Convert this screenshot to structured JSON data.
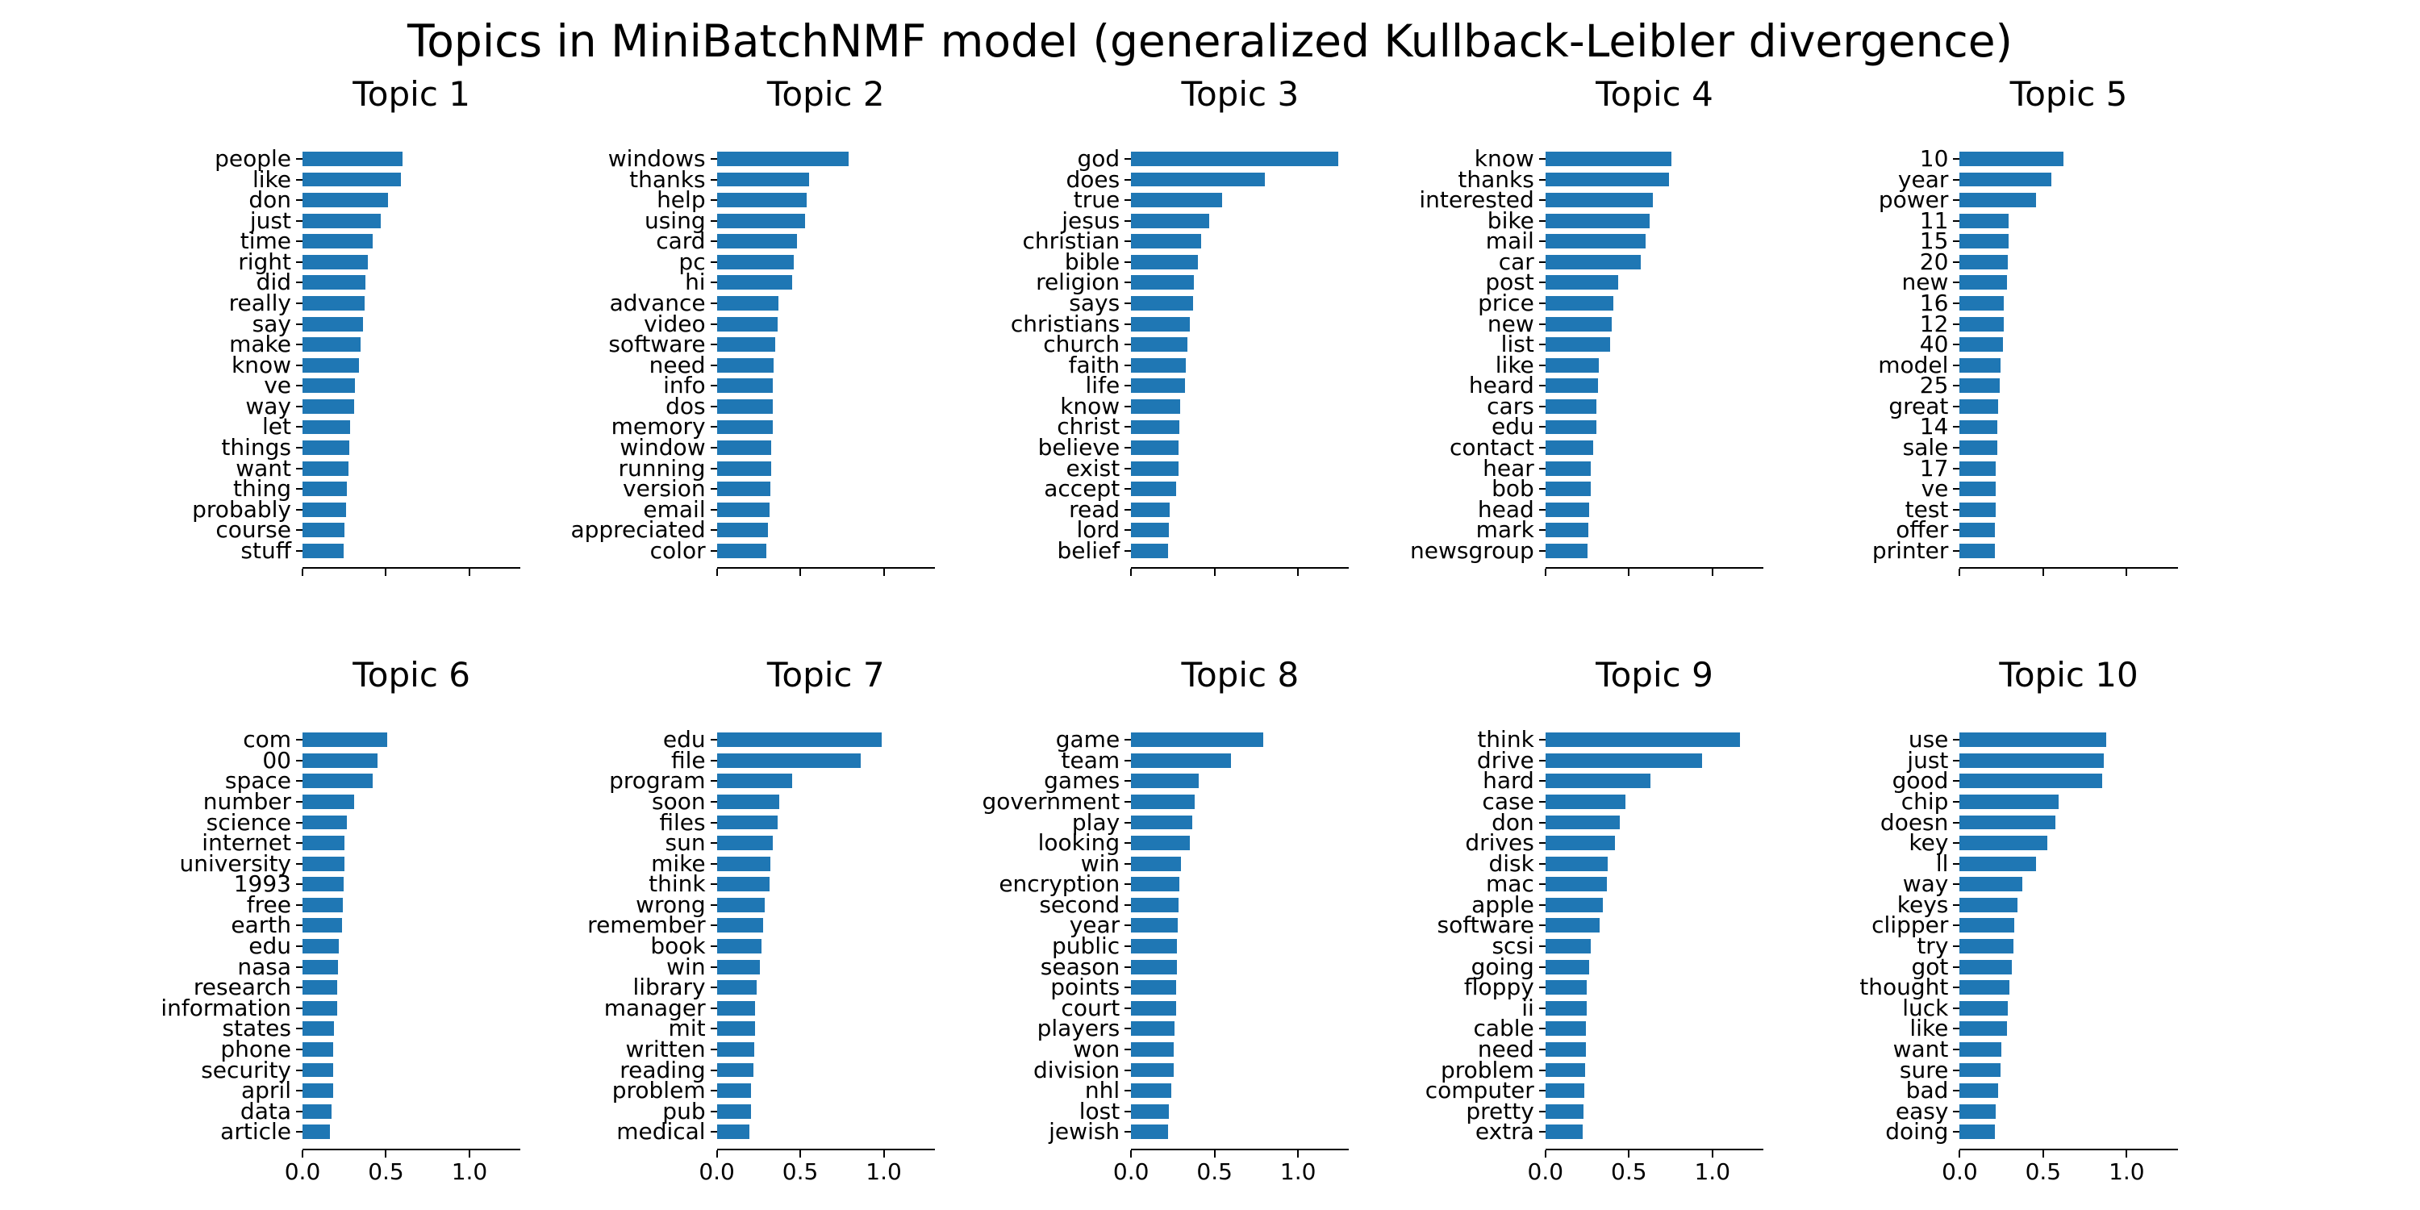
{
  "figure_title": "Topics in MiniBatchNMF model (generalized Kullback-Leibler divergence)",
  "chart_data": {
    "type": "bar",
    "orientation": "horizontal",
    "grid": false,
    "legend": "none",
    "bar_color": "#1f77b4",
    "xlim": [
      0,
      1.306
    ],
    "x_ticks": [
      0.0,
      0.5,
      1.0
    ],
    "x_tick_labels": [
      "0.0",
      "0.5",
      "1.0"
    ],
    "x_tick_labels_rows": [
      false,
      true
    ],
    "subplots": [
      {
        "title": "Topic 1",
        "words": [
          "people",
          "like",
          "don",
          "just",
          "time",
          "right",
          "did",
          "really",
          "say",
          "make",
          "know",
          "ve",
          "way",
          "let",
          "things",
          "want",
          "thing",
          "probably",
          "course",
          "stuff"
        ],
        "values": [
          0.6,
          0.59,
          0.51,
          0.47,
          0.42,
          0.39,
          0.375,
          0.37,
          0.36,
          0.35,
          0.34,
          0.315,
          0.31,
          0.285,
          0.28,
          0.275,
          0.265,
          0.26,
          0.252,
          0.246
        ]
      },
      {
        "title": "Topic 2",
        "words": [
          "windows",
          "thanks",
          "help",
          "using",
          "card",
          "pc",
          "hi",
          "advance",
          "video",
          "software",
          "need",
          "info",
          "dos",
          "memory",
          "window",
          "running",
          "version",
          "email",
          "appreciated",
          "color"
        ],
        "values": [
          0.79,
          0.555,
          0.54,
          0.53,
          0.48,
          0.462,
          0.45,
          0.37,
          0.365,
          0.35,
          0.34,
          0.337,
          0.335,
          0.335,
          0.326,
          0.324,
          0.32,
          0.314,
          0.308,
          0.295
        ]
      },
      {
        "title": "Topic 3",
        "words": [
          "god",
          "does",
          "true",
          "jesus",
          "christian",
          "bible",
          "religion",
          "says",
          "christians",
          "church",
          "faith",
          "life",
          "know",
          "christ",
          "believe",
          "exist",
          "accept",
          "read",
          "lord",
          "belief"
        ],
        "values": [
          1.24,
          0.8,
          0.545,
          0.468,
          0.42,
          0.402,
          0.376,
          0.372,
          0.352,
          0.335,
          0.328,
          0.325,
          0.295,
          0.29,
          0.284,
          0.282,
          0.268,
          0.23,
          0.226,
          0.221
        ]
      },
      {
        "title": "Topic 4",
        "words": [
          "know",
          "thanks",
          "interested",
          "bike",
          "mail",
          "car",
          "post",
          "price",
          "new",
          "list",
          "like",
          "heard",
          "cars",
          "edu",
          "contact",
          "hear",
          "bob",
          "head",
          "mark",
          "newsgroup"
        ],
        "values": [
          0.757,
          0.742,
          0.642,
          0.625,
          0.602,
          0.571,
          0.436,
          0.408,
          0.398,
          0.387,
          0.32,
          0.316,
          0.305,
          0.304,
          0.286,
          0.273,
          0.271,
          0.26,
          0.259,
          0.254
        ]
      },
      {
        "title": "Topic 5",
        "words": [
          "10",
          "year",
          "power",
          "11",
          "15",
          "20",
          "new",
          "16",
          "12",
          "40",
          "model",
          "25",
          "great",
          "14",
          "sale",
          "17",
          "ve",
          "test",
          "offer",
          "printer"
        ],
        "values": [
          0.623,
          0.55,
          0.455,
          0.292,
          0.291,
          0.288,
          0.284,
          0.266,
          0.264,
          0.26,
          0.245,
          0.24,
          0.231,
          0.227,
          0.226,
          0.217,
          0.216,
          0.215,
          0.211,
          0.211
        ]
      },
      {
        "title": "Topic 6",
        "words": [
          "com",
          "00",
          "space",
          "number",
          "science",
          "internet",
          "university",
          "1993",
          "free",
          "earth",
          "edu",
          "nasa",
          "research",
          "information",
          "states",
          "phone",
          "security",
          "april",
          "data",
          "article"
        ],
        "values": [
          0.506,
          0.448,
          0.421,
          0.309,
          0.267,
          0.253,
          0.249,
          0.248,
          0.241,
          0.235,
          0.218,
          0.213,
          0.207,
          0.206,
          0.189,
          0.184,
          0.184,
          0.183,
          0.174,
          0.166
        ]
      },
      {
        "title": "Topic 7",
        "words": [
          "edu",
          "file",
          "program",
          "soon",
          "files",
          "sun",
          "mike",
          "think",
          "wrong",
          "remember",
          "book",
          "win",
          "library",
          "manager",
          "mit",
          "written",
          "reading",
          "problem",
          "pub",
          "medical"
        ],
        "values": [
          0.988,
          0.862,
          0.449,
          0.375,
          0.362,
          0.337,
          0.322,
          0.317,
          0.285,
          0.276,
          0.269,
          0.256,
          0.237,
          0.231,
          0.23,
          0.224,
          0.217,
          0.206,
          0.205,
          0.195
        ]
      },
      {
        "title": "Topic 8",
        "words": [
          "game",
          "team",
          "games",
          "government",
          "play",
          "looking",
          "win",
          "encryption",
          "second",
          "year",
          "public",
          "season",
          "points",
          "court",
          "players",
          "won",
          "division",
          "nhl",
          "lost",
          "jewish"
        ],
        "values": [
          0.792,
          0.598,
          0.406,
          0.382,
          0.364,
          0.351,
          0.3,
          0.289,
          0.284,
          0.279,
          0.275,
          0.274,
          0.269,
          0.268,
          0.259,
          0.255,
          0.254,
          0.24,
          0.226,
          0.221
        ]
      },
      {
        "title": "Topic 9",
        "words": [
          "think",
          "drive",
          "hard",
          "case",
          "don",
          "drives",
          "disk",
          "mac",
          "apple",
          "software",
          "scsi",
          "going",
          "floppy",
          "ii",
          "cable",
          "need",
          "problem",
          "computer",
          "pretty",
          "extra"
        ],
        "values": [
          1.166,
          0.94,
          0.631,
          0.481,
          0.447,
          0.415,
          0.371,
          0.366,
          0.344,
          0.326,
          0.273,
          0.263,
          0.249,
          0.248,
          0.242,
          0.241,
          0.237,
          0.234,
          0.229,
          0.223
        ]
      },
      {
        "title": "Topic 10",
        "words": [
          "use",
          "just",
          "good",
          "chip",
          "doesn",
          "key",
          "ll",
          "way",
          "keys",
          "clipper",
          "try",
          "got",
          "thought",
          "luck",
          "like",
          "want",
          "sure",
          "bad",
          "easy",
          "doing"
        ],
        "values": [
          0.879,
          0.861,
          0.852,
          0.59,
          0.571,
          0.527,
          0.456,
          0.373,
          0.348,
          0.325,
          0.324,
          0.31,
          0.3,
          0.29,
          0.281,
          0.25,
          0.245,
          0.231,
          0.216,
          0.213
        ]
      }
    ]
  }
}
